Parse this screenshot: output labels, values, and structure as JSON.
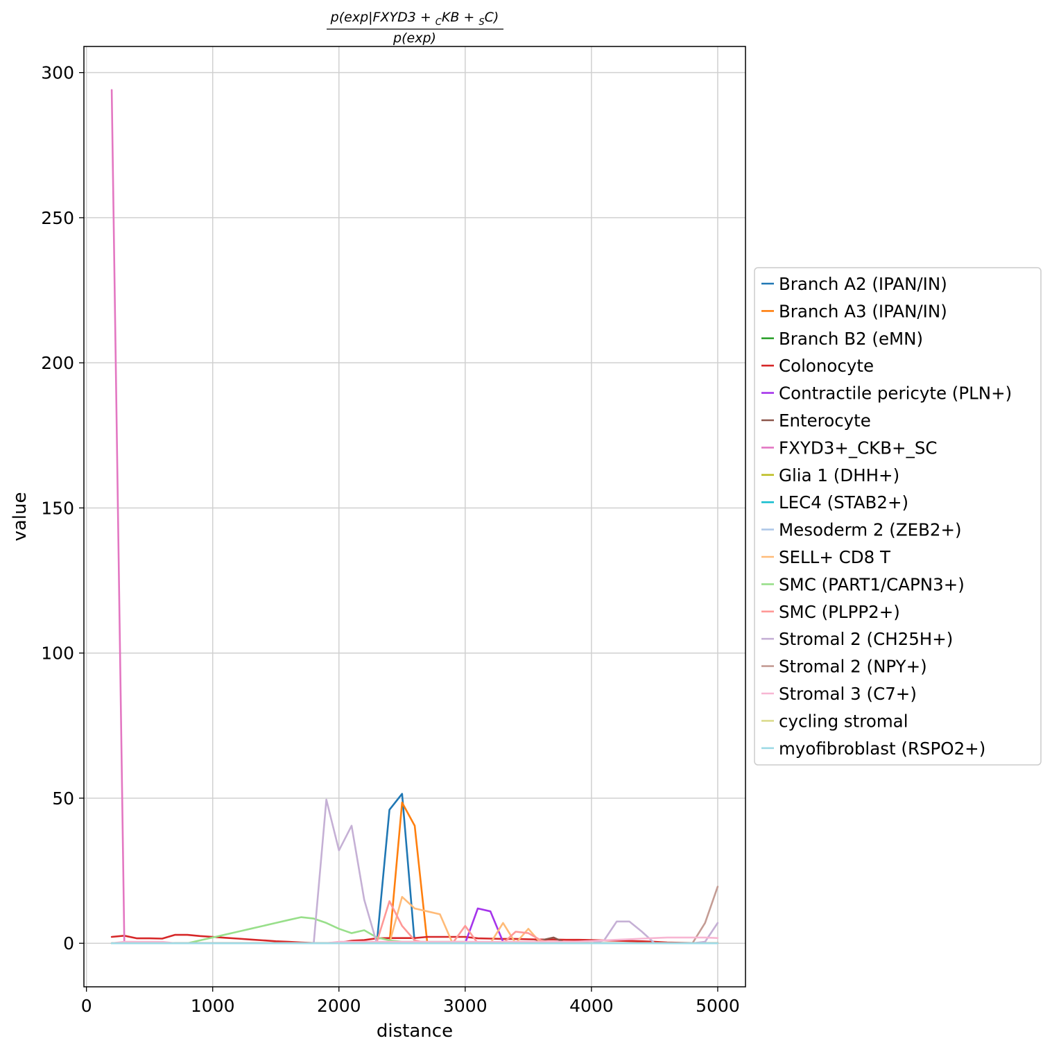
{
  "chart_data": {
    "type": "line",
    "title": {
      "numerator_prefix": "p(exp|FXYD3 + ",
      "numerator_sub1": "C",
      "numerator_mid": "KB + ",
      "numerator_sub2": "S",
      "numerator_suffix": "C)",
      "denominator": "p(exp)"
    },
    "xlabel": "distance",
    "ylabel": "value",
    "xlim": [
      -20,
      5220
    ],
    "ylim": [
      -15,
      309
    ],
    "x_ticks": [
      0,
      1000,
      2000,
      3000,
      4000,
      5000
    ],
    "y_ticks": [
      0,
      50,
      100,
      150,
      200,
      250,
      300
    ],
    "grid": true,
    "legend_position": "right-center",
    "x": [
      200,
      300,
      400,
      500,
      600,
      700,
      800,
      900,
      1000,
      1100,
      1200,
      1300,
      1400,
      1500,
      1600,
      1700,
      1800,
      1900,
      2000,
      2100,
      2200,
      2300,
      2400,
      2500,
      2600,
      2700,
      2800,
      2900,
      3000,
      3100,
      3200,
      3300,
      3400,
      3500,
      3600,
      3700,
      3800,
      3900,
      4000,
      4100,
      4200,
      4300,
      4400,
      4500,
      4600,
      4700,
      4800,
      4900,
      5000
    ],
    "series": [
      {
        "name": "Branch A2 (IPAN/IN)",
        "color": "#1f77b4",
        "values": [
          0,
          0,
          0,
          0,
          0,
          0,
          0,
          0,
          0,
          0,
          0,
          0,
          0,
          0,
          0,
          0,
          0,
          0,
          0,
          0,
          0,
          0,
          46,
          51.5,
          0,
          0,
          0,
          0,
          0,
          0,
          0,
          0,
          0,
          0,
          0,
          0,
          0,
          0,
          0,
          0,
          0,
          0,
          0,
          0,
          0,
          0,
          0,
          0,
          0
        ]
      },
      {
        "name": "Branch A3 (IPAN/IN)",
        "color": "#ff7f0e",
        "values": [
          0,
          0,
          0,
          0,
          0,
          0,
          0,
          0,
          0,
          0,
          0,
          0,
          0,
          0,
          0,
          0,
          0,
          0,
          0,
          0,
          0,
          0,
          0,
          48.5,
          40.5,
          0,
          0,
          0,
          0,
          0,
          0,
          0,
          0,
          0,
          0,
          0,
          0,
          0,
          0,
          0,
          0,
          0,
          0,
          0,
          0,
          0,
          0,
          0,
          0
        ]
      },
      {
        "name": "Branch B2 (eMN)",
        "color": "#2ca02c",
        "values": [
          0,
          0,
          0,
          0,
          0,
          0,
          0,
          0,
          0,
          0,
          0,
          0,
          0,
          0,
          0,
          0,
          0,
          0,
          0,
          0,
          0,
          0,
          0,
          0,
          0,
          0,
          0,
          0,
          0,
          0,
          0,
          0,
          0,
          0,
          0,
          0,
          0,
          0,
          0,
          0,
          0,
          0,
          0,
          0,
          0,
          0,
          0,
          0,
          0
        ]
      },
      {
        "name": "Colonocyte",
        "color": "#d62728",
        "values": [
          2.2,
          2.6,
          1.7,
          1.7,
          1.6,
          2.9,
          2.9,
          2.5,
          2.2,
          1.9,
          1.6,
          1.3,
          1.0,
          0.7,
          0.5,
          0.3,
          0.1,
          0.1,
          0.2,
          0.9,
          1.1,
          1.7,
          1.8,
          1.8,
          1.8,
          2.2,
          2.2,
          2.2,
          2.2,
          1.7,
          1.6,
          1.5,
          1.5,
          1.4,
          1.3,
          1.3,
          1.2,
          1.2,
          1.1,
          1.0,
          0.9,
          0.8,
          0.7,
          0.5,
          0.3,
          0.2,
          0.1,
          0.1,
          0.1
        ]
      },
      {
        "name": "Contractile pericyte (PLN+)",
        "color": "#a534eb",
        "values": [
          0,
          0,
          0,
          0,
          0,
          0,
          0,
          0,
          0,
          0,
          0,
          0,
          0,
          0,
          0,
          0,
          0,
          0,
          0,
          0,
          0,
          0,
          0,
          0,
          0,
          0,
          0,
          0,
          0,
          12,
          11,
          0.5,
          0,
          0,
          0,
          0,
          0,
          0,
          0,
          0,
          0,
          0,
          0,
          0,
          0,
          0,
          0,
          0,
          0
        ]
      },
      {
        "name": "Enterocyte",
        "color": "#8c564b",
        "values": [
          0,
          0,
          0,
          0,
          0,
          0,
          0,
          0,
          0,
          0,
          0,
          0,
          0,
          0,
          0,
          0,
          0,
          0,
          0,
          0,
          0,
          0,
          0,
          0,
          0,
          0,
          0,
          0,
          0,
          0,
          0,
          0,
          0,
          0,
          1,
          2,
          0,
          0,
          0,
          0,
          0,
          0,
          0,
          0,
          0,
          0,
          0,
          0,
          0
        ]
      },
      {
        "name": "FXYD3+_CKB+_SC",
        "color": "#e377c2",
        "values": [
          294,
          0,
          0,
          0,
          0,
          0,
          0,
          0,
          0,
          0,
          0,
          0,
          0,
          0,
          0,
          0,
          0,
          0,
          0,
          0,
          0,
          0,
          0,
          0,
          0,
          0,
          0,
          0,
          0,
          0,
          0,
          0,
          0,
          0,
          0,
          0,
          0,
          0,
          0,
          0,
          0,
          0,
          0,
          0,
          0,
          0,
          0,
          0,
          0
        ]
      },
      {
        "name": "Glia 1 (DHH+)",
        "color": "#bcbd22",
        "values": [
          0,
          0,
          0,
          0,
          0,
          0,
          0,
          0,
          0,
          0,
          0,
          0,
          0,
          0,
          0,
          0,
          0,
          0,
          0,
          0,
          0,
          0,
          0,
          0,
          0,
          0,
          0,
          0,
          0,
          0,
          0,
          0,
          0,
          0,
          0,
          0,
          0,
          0,
          0,
          0,
          0,
          0,
          0,
          0,
          0,
          0,
          0,
          0,
          0
        ]
      },
      {
        "name": "LEC4 (STAB2+)",
        "color": "#17becf",
        "values": [
          0,
          0,
          0,
          0,
          0,
          0,
          0,
          0,
          0,
          0,
          0,
          0,
          0,
          0,
          0,
          0,
          0,
          0,
          0,
          0,
          0,
          0,
          0,
          0,
          0,
          0,
          0,
          0,
          0,
          0,
          0,
          0,
          0,
          0,
          0,
          0,
          0,
          0,
          0,
          0,
          0,
          0,
          0,
          0,
          0,
          0,
          0,
          0,
          0
        ]
      },
      {
        "name": "Mesoderm 2 (ZEB2+)",
        "color": "#aec7e8",
        "values": [
          0,
          0,
          0,
          0,
          0,
          0,
          0,
          0,
          0,
          0,
          0,
          0,
          0,
          0,
          0,
          0,
          0,
          0,
          0,
          0,
          0,
          0,
          0,
          0,
          0,
          0,
          0,
          0,
          0,
          0,
          0,
          0,
          0,
          0,
          0,
          0,
          0,
          0,
          0,
          0,
          0,
          0,
          0,
          0,
          0,
          0,
          0,
          0,
          0
        ]
      },
      {
        "name": "SELL+ CD8 T",
        "color": "#ffbb78",
        "values": [
          0,
          0,
          0,
          0,
          0,
          0,
          0,
          0,
          0,
          0,
          0,
          0,
          0,
          0,
          0,
          0,
          0,
          0,
          0,
          0,
          0,
          0,
          0,
          16,
          12,
          11,
          10,
          0,
          0,
          0,
          0,
          7,
          0,
          5,
          0,
          0,
          0,
          0,
          0,
          0,
          0,
          0,
          0,
          0,
          0,
          0,
          0,
          0,
          0
        ]
      },
      {
        "name": "SMC (PART1/CAPN3+)",
        "color": "#98df8a",
        "values": [
          0,
          0,
          0,
          0,
          0,
          0,
          0,
          1,
          2,
          3,
          4,
          5,
          6,
          7,
          8,
          9,
          8.5,
          7,
          5,
          3.5,
          4.5,
          2,
          1,
          0.5,
          0.5,
          0.5,
          0.5,
          0.5,
          0.5,
          0,
          0,
          0,
          0,
          0,
          0,
          0,
          0,
          0,
          0,
          0,
          0,
          0,
          0,
          0,
          0,
          0,
          0,
          0,
          0
        ]
      },
      {
        "name": "SMC (PLPP2+)",
        "color": "#ff9896",
        "values": [
          0,
          0,
          0,
          0,
          0,
          0,
          0,
          0,
          0,
          0,
          0,
          0,
          0,
          0,
          0,
          0,
          0,
          0,
          0,
          0,
          0,
          0.5,
          14.5,
          6,
          1,
          0,
          0,
          0,
          6,
          0,
          0,
          0,
          4,
          3.5,
          1,
          0,
          0,
          0,
          0,
          0,
          0,
          0,
          0,
          0,
          0,
          0,
          0,
          0,
          0
        ]
      },
      {
        "name": "Stromal 2 (CH25H+)",
        "color": "#c5b0d5",
        "values": [
          0,
          0,
          0,
          0,
          0,
          0,
          0,
          0,
          0,
          0,
          0,
          0,
          0,
          0,
          0,
          0,
          0,
          49.5,
          32,
          40.5,
          15,
          0,
          0,
          0,
          0,
          0,
          0,
          0,
          0,
          0,
          0,
          0,
          0,
          0,
          0,
          0,
          0,
          0,
          0,
          1,
          7.5,
          7.5,
          4,
          0,
          0,
          0,
          0,
          0.5,
          7
        ]
      },
      {
        "name": "Stromal 2 (NPY+)",
        "color": "#c49c94",
        "values": [
          0,
          0,
          0,
          0,
          0,
          0,
          0,
          0,
          0,
          0,
          0,
          0,
          0,
          0,
          0,
          0,
          0,
          0,
          0,
          0,
          0,
          0,
          0,
          0,
          0,
          0,
          0,
          0,
          0,
          0,
          0,
          0,
          0,
          0,
          0,
          0,
          0,
          0,
          0,
          0,
          0,
          0,
          0,
          0,
          0,
          0,
          0,
          7,
          19.5
        ]
      },
      {
        "name": "Stromal 3 (C7+)",
        "color": "#f7b6d2",
        "values": [
          0,
          0.5,
          0.5,
          0.5,
          0.5,
          0,
          0,
          0,
          0,
          0,
          0,
          0,
          0,
          0,
          0,
          0,
          0,
          0,
          0.5,
          0.5,
          0.5,
          0.5,
          0.5,
          0.5,
          0.5,
          0.5,
          0.5,
          0.5,
          0.5,
          0.5,
          0.5,
          0.5,
          0.5,
          0.5,
          0.5,
          0.5,
          0.5,
          0.6,
          0.8,
          1.0,
          1.2,
          1.4,
          1.6,
          1.8,
          2.0,
          2.0,
          2.0,
          2.0,
          1.8
        ]
      },
      {
        "name": "cycling stromal",
        "color": "#dbdb8d",
        "values": [
          0,
          0,
          0,
          0,
          0,
          0,
          0,
          0,
          0,
          0,
          0,
          0,
          0,
          0,
          0,
          0,
          0,
          0,
          0,
          0,
          0,
          0,
          0,
          0,
          0,
          0,
          0,
          0,
          0,
          0,
          0,
          0,
          0,
          0,
          0,
          0,
          0,
          0,
          0,
          0,
          0,
          0,
          0,
          0,
          0,
          0,
          0,
          0,
          0
        ]
      },
      {
        "name": "myofibroblast (RSPO2+)",
        "color": "#9edae5",
        "values": [
          0,
          0,
          0,
          0,
          0,
          0,
          0,
          0,
          0,
          0,
          0,
          0,
          0,
          0,
          0,
          0,
          0,
          0,
          0,
          0,
          0,
          0,
          0,
          0,
          0,
          0,
          0,
          0,
          0,
          0,
          0,
          0,
          0,
          0,
          0,
          0,
          0,
          0,
          0,
          0,
          0,
          0,
          0,
          0,
          0,
          0,
          0,
          0,
          0
        ]
      }
    ]
  }
}
